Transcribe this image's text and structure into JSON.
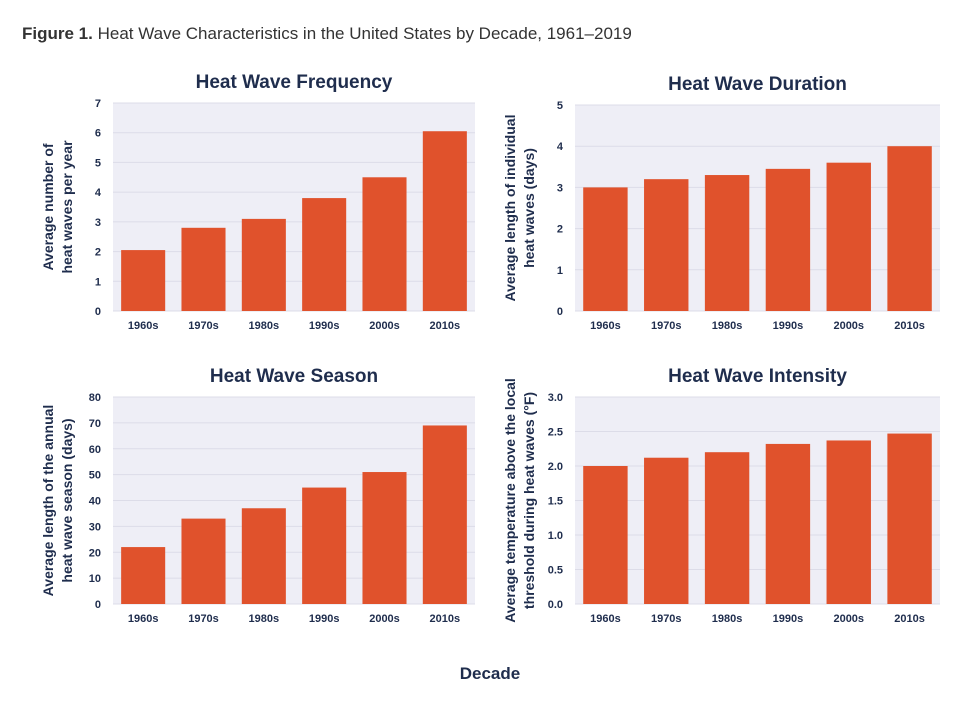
{
  "figure": {
    "label": "Figure 1.",
    "title": "Heat Wave Characteristics in the United States by Decade, 1961–2019",
    "xlabel": "Decade"
  },
  "colors": {
    "bar": "#e0522c",
    "plot_bg": "#eeeef6",
    "grid": "#dcdce8",
    "text": "#1f2d4d"
  },
  "chart_data": [
    {
      "type": "bar",
      "title": "Heat Wave Frequency",
      "ylabel": [
        "Average number of",
        "heat waves per year"
      ],
      "categories": [
        "1960s",
        "1970s",
        "1980s",
        "1990s",
        "2000s",
        "2010s"
      ],
      "values": [
        2.05,
        2.8,
        3.1,
        3.8,
        4.5,
        6.05
      ],
      "ylim": [
        0,
        7
      ],
      "yticks": [
        "0",
        "1",
        "2",
        "3",
        "4",
        "5",
        "6",
        "7"
      ],
      "grid": true
    },
    {
      "type": "bar",
      "title": "Heat Wave Duration",
      "ylabel": [
        "Average length of individual",
        "heat waves (days)"
      ],
      "categories": [
        "1960s",
        "1970s",
        "1980s",
        "1990s",
        "2000s",
        "2010s"
      ],
      "values": [
        3.0,
        3.2,
        3.3,
        3.45,
        3.6,
        4.0
      ],
      "ylim": [
        0,
        5
      ],
      "yticks": [
        "0",
        "1",
        "2",
        "3",
        "4",
        "5"
      ],
      "grid": true
    },
    {
      "type": "bar",
      "title": "Heat Wave Season",
      "ylabel": [
        "Average length of the annual",
        "heat wave season (days)"
      ],
      "categories": [
        "1960s",
        "1970s",
        "1980s",
        "1990s",
        "2000s",
        "2010s"
      ],
      "values": [
        22,
        33,
        37,
        45,
        51,
        69
      ],
      "ylim": [
        0,
        80
      ],
      "yticks": [
        "0",
        "10",
        "20",
        "30",
        "40",
        "50",
        "60",
        "70",
        "80"
      ],
      "grid": true
    },
    {
      "type": "bar",
      "title": "Heat Wave Intensity",
      "ylabel": [
        "Average temperature above the local",
        "threshold during heat waves (°F)"
      ],
      "categories": [
        "1960s",
        "1970s",
        "1980s",
        "1990s",
        "2000s",
        "2010s"
      ],
      "values": [
        2.0,
        2.12,
        2.2,
        2.32,
        2.37,
        2.47
      ],
      "ylim": [
        0,
        3
      ],
      "yticks": [
        "0.0",
        "0.5",
        "1.0",
        "1.5",
        "2.0",
        "2.5",
        "3.0"
      ],
      "grid": true
    }
  ]
}
